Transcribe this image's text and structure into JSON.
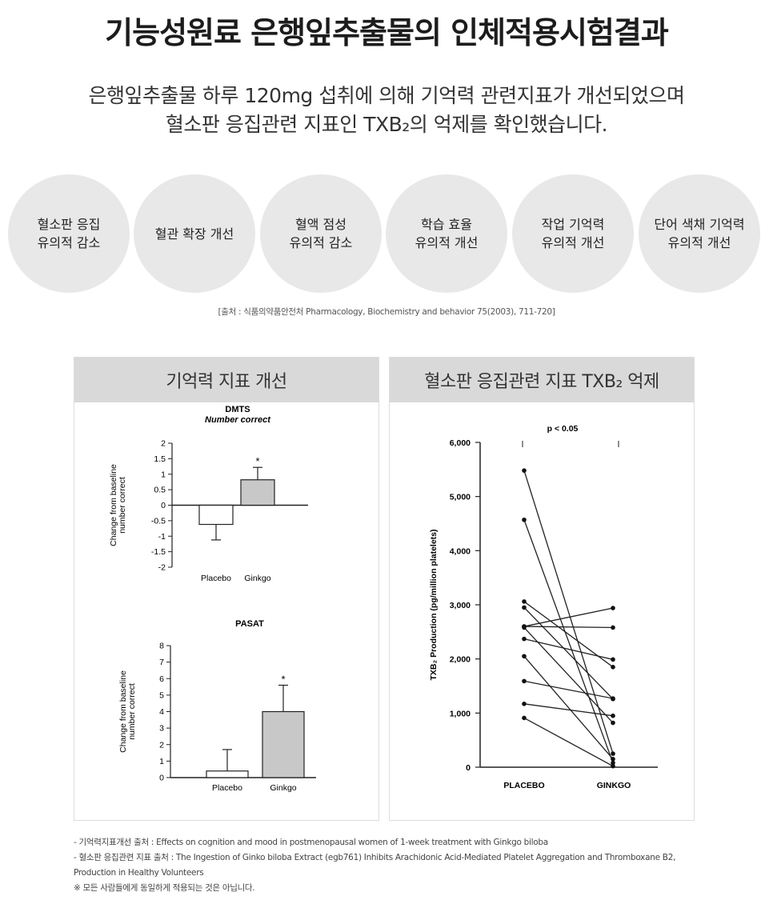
{
  "title": "기능성원료 은행잎추출물의 인체적용시험결과",
  "subtitle": {
    "line1": "은행잎추출물 하루 120mg 섭취에 의해 기억력 관련지표가 개선되었으며",
    "line2": "혈소판 응집관련 지표인 TXB₂의 억제를 확인했습니다."
  },
  "circles": [
    "혈소판 응집\n유의적 감소",
    "혈관 확장 개선",
    "혈액 점성\n유의적 감소",
    "학습 효율\n유의적 개선",
    "작업 기억력\n유의적 개선",
    "단어 색채 기억력\n유의적 개선"
  ],
  "source_top": "[출처 : 식품의약품안전처 Pharmacology, Biochemistry and behavior 75(2003), 711-720]",
  "panels": {
    "left_title": "기억력 지표 개선",
    "right_title": "혈소판 응집관련 지표 TXB₂ 억제"
  },
  "chart_data": [
    {
      "type": "bar",
      "title": "DMTS",
      "subtitle": "Number correct",
      "ylabel": [
        "Change from baseline",
        "number correct"
      ],
      "categories": [
        "Placebo",
        "Ginkgo"
      ],
      "values": [
        -0.62,
        0.82
      ],
      "errors": [
        0.5,
        0.4
      ],
      "bar_colors": [
        "#ffffff",
        "#c8c8c8"
      ],
      "significance": [
        "",
        "*"
      ],
      "ylim": [
        -2,
        2
      ],
      "yticks": [
        "2",
        "1.5",
        "1",
        "0.5",
        "0",
        "-0.5",
        "-1",
        "-1.5",
        "-2"
      ],
      "ytick_values": [
        2,
        1.5,
        1,
        0.5,
        0,
        -0.5,
        -1,
        -1.5,
        -2
      ]
    },
    {
      "type": "bar",
      "title": "PASAT",
      "ylabel": [
        "Change from baseline",
        "number correct"
      ],
      "categories": [
        "Placebo",
        "Ginkgo"
      ],
      "values": [
        0.4,
        4.0
      ],
      "errors": [
        1.3,
        1.6
      ],
      "bar_colors": [
        "#ffffff",
        "#c8c8c8"
      ],
      "significance": [
        "",
        "*"
      ],
      "ylim": [
        0,
        8
      ],
      "yticks": [
        "8",
        "7",
        "6",
        "5",
        "4",
        "3",
        "2",
        "1",
        "0"
      ],
      "ytick_values": [
        8,
        7,
        6,
        5,
        4,
        3,
        2,
        1,
        0
      ]
    },
    {
      "type": "line",
      "annotation": "p < 0.05",
      "ylabel": "TXB₂ Production (pg/million platelets)",
      "categories": [
        "PLACEBO",
        "GINKGO"
      ],
      "ylim": [
        0,
        6000
      ],
      "yticks": [
        "6,000",
        "5,000",
        "4,000",
        "3,000",
        "2,000",
        "1,000",
        "0"
      ],
      "ytick_values": [
        6000,
        5000,
        4000,
        3000,
        2000,
        1000,
        0
      ],
      "pairs": [
        [
          5480,
          250
        ],
        [
          4570,
          80
        ],
        [
          3060,
          1850
        ],
        [
          2950,
          1260
        ],
        [
          2600,
          2580
        ],
        [
          2580,
          820
        ],
        [
          2370,
          1990
        ],
        [
          2050,
          150
        ],
        [
          1590,
          1270
        ],
        [
          1170,
          950
        ],
        [
          910,
          20
        ],
        [
          2600,
          2940
        ]
      ]
    }
  ],
  "notes": [
    "- 기억력지표개선 출처 : Effects on cognition and mood in postmenopausal women of 1-week treatment with Ginkgo biloba",
    "- 혈소판 응집관련 지표 출처 : The Ingestion of Ginko biloba Extract (egb761) Inhibits Arachidonic Acid-Mediated Platelet Aggregation and Thromboxane B2, Production in Healthy Volunteers",
    "※ 모든 사람들에게 동일하게 적용되는 것은 아닙니다."
  ]
}
